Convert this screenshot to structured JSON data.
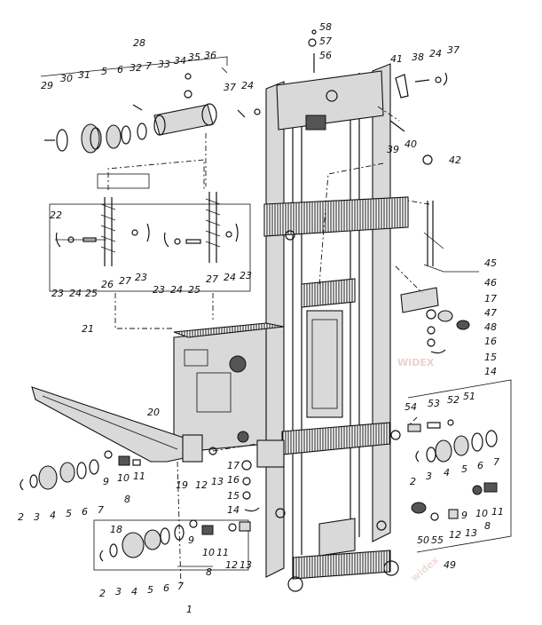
{
  "watermark": {
    "main": "WIDEX",
    "corner": "widex"
  },
  "labels": {
    "l1": "1",
    "l2a": "2",
    "l3a": "3",
    "l4a": "4",
    "l5a": "5",
    "l6a": "6",
    "l7a": "7",
    "l2b": "2",
    "l3b": "3",
    "l4b": "4",
    "l5b": "5",
    "l6b": "6",
    "l7b": "7",
    "l2c": "2",
    "l3c": "3",
    "l4c": "4",
    "l5c": "5",
    "l6c": "6",
    "l7c": "7",
    "l8a": "8",
    "l9a": "9",
    "l10a": "10",
    "l11a": "11",
    "l8b": "8",
    "l9b": "9",
    "l10b": "10",
    "l11b": "11",
    "l8c": "8",
    "l9c": "9",
    "l10c": "10",
    "l11c": "11",
    "l12a": "12",
    "l13a": "13",
    "l12b": "12",
    "l13b": "13",
    "l12c": "12",
    "l13c": "13",
    "l14a": "14",
    "l14b": "14",
    "l15a": "15",
    "l15b": "15",
    "l16a": "16",
    "l16b": "16",
    "l17a": "17",
    "l17b": "17",
    "l18": "18",
    "l19": "19",
    "l20": "20",
    "l21": "21",
    "l22": "22",
    "l23a": "23",
    "l23b": "23",
    "l23c": "23",
    "l23d": "23",
    "l24a": "24",
    "l24b": "24",
    "l24c": "24",
    "l24d": "24",
    "l24e": "24",
    "l25a": "25",
    "l25b": "25",
    "l26": "26",
    "l27a": "27",
    "l27b": "27",
    "l28": "28",
    "l29": "29",
    "l30": "30",
    "l31": "31",
    "l32": "32",
    "l33": "33",
    "l34": "34",
    "l35": "35",
    "l36": "36",
    "l37a": "37",
    "l37b": "37",
    "l38": "38",
    "l39": "39",
    "l40": "40",
    "l41": "41",
    "l42": "42",
    "l45": "45",
    "l46": "46",
    "l47": "47",
    "l48": "48",
    "l49": "49",
    "l50": "50",
    "l51": "51",
    "l52": "52",
    "l53": "53",
    "l54": "54",
    "l55": "55",
    "l56": "56",
    "l57": "57",
    "l58": "58"
  }
}
